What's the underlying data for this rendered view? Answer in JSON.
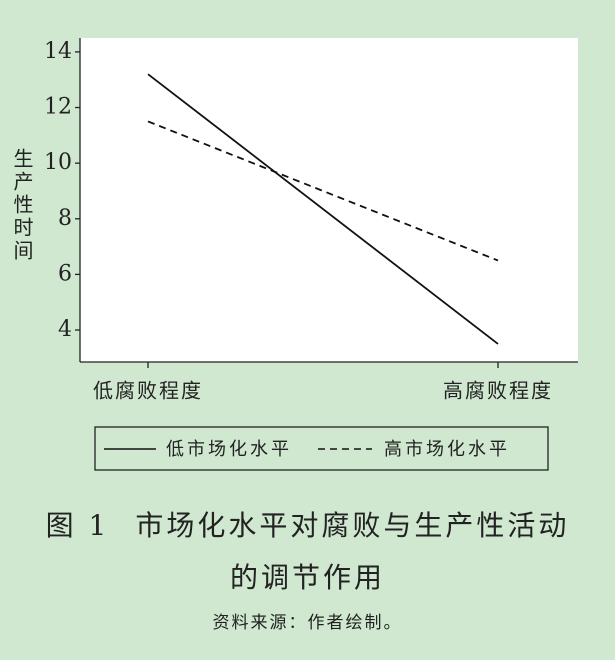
{
  "chart_data": {
    "type": "line",
    "y_label": "生产性时间",
    "categories": [
      "低腐败程度",
      "高腐败程度"
    ],
    "series": [
      {
        "name": "低市场化水平",
        "color": "#111111",
        "line_style": "solid",
        "values": [
          13.2,
          3.5
        ]
      },
      {
        "name": "高市场化水平",
        "color": "#111111",
        "line_style": "dashed",
        "values": [
          11.5,
          6.5
        ]
      }
    ],
    "ylim": [
      2.85,
      14.5
    ],
    "yticks": [
      4,
      6,
      8,
      10,
      12,
      14
    ],
    "grid": false,
    "legend": "bottom",
    "figure_label": "图 1",
    "title": "市场化水平对腐败与生产性活动的调节作用",
    "source": "资料来源：作者绘制。"
  }
}
